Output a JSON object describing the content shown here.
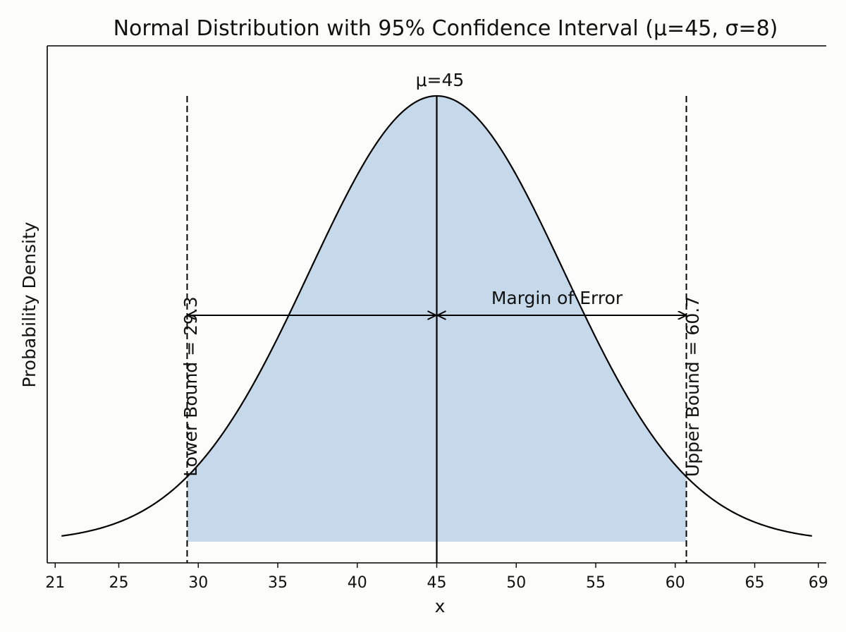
{
  "chart_data": {
    "type": "area",
    "title": "Normal Distribution with 95% Confidence Interval (μ=45, σ=8)",
    "xlabel": "x",
    "ylabel": "Probability Density",
    "mu": 45,
    "sigma": 8,
    "xlim": [
      20.5,
      69.5
    ],
    "x_range": [
      21.4,
      68.6
    ],
    "x_ticks": [
      21,
      25,
      30,
      35,
      40,
      45,
      50,
      55,
      60,
      65,
      69
    ],
    "lower_bound": 29.3,
    "upper_bound": 60.7,
    "shaded_region": [
      29.3,
      60.7
    ],
    "y_ticks_visible": false,
    "grid": false,
    "annotations": {
      "mean_label": "μ=45",
      "lower_label": "Lower Bound = 29.3",
      "upper_label": "Upper Bound = 60.7",
      "margin_label": "Margin of Error"
    },
    "colors": {
      "curve": "#000000",
      "fill": "#c6d9ea",
      "background": "#fcfcfa"
    }
  }
}
